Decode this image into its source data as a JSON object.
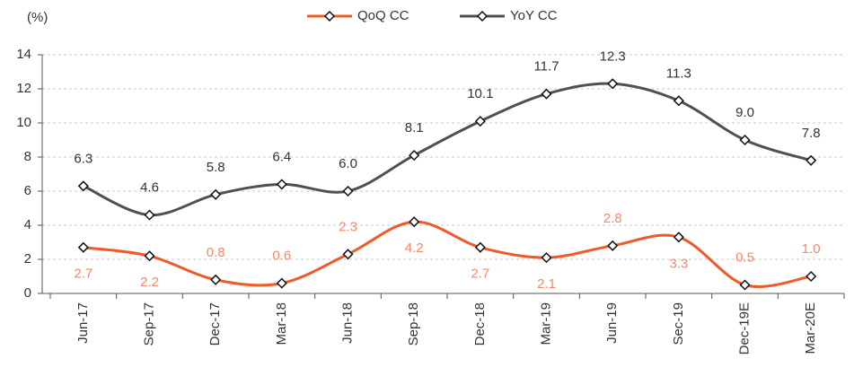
{
  "chart_data": {
    "type": "line",
    "y_axis_label": "(%)",
    "categories": [
      "Jun-17",
      "Sep-17",
      "Dec-17",
      "Mar-18",
      "Jun-18",
      "Sep-18",
      "Dec-18",
      "Mar-19",
      "Jun-19",
      "Sec-19",
      "Dec-19E",
      "Mar-20E"
    ],
    "series": [
      {
        "name": "QoQ CC",
        "color": "#f05a28",
        "label_color": "#f4886a",
        "values": [
          2.7,
          2.2,
          0.8,
          0.6,
          2.3,
          4.2,
          2.7,
          2.1,
          2.8,
          3.3,
          0.5,
          1.0
        ],
        "value_labels": [
          "2.7",
          "2.2",
          "0.8",
          "0.6",
          "2.3",
          "4.2",
          "2.7",
          "2.1",
          "2.8",
          "3.3",
          "0.5",
          "1.0"
        ]
      },
      {
        "name": "YoY CC",
        "color": "#505050",
        "label_color": "#333333",
        "values": [
          6.3,
          4.6,
          5.8,
          6.4,
          6.0,
          8.1,
          10.1,
          11.7,
          12.3,
          11.3,
          9.0,
          7.8
        ],
        "value_labels": [
          "6.3",
          "4.6",
          "5.8",
          "6.4",
          "6.0",
          "8.1",
          "10.1",
          "11.7",
          "12.3",
          "11.3",
          "9.0",
          "7.8"
        ]
      }
    ],
    "ylim": [
      0,
      14
    ],
    "yticks": [
      0,
      2,
      4,
      6,
      8,
      10,
      12,
      14
    ],
    "grid": true
  }
}
